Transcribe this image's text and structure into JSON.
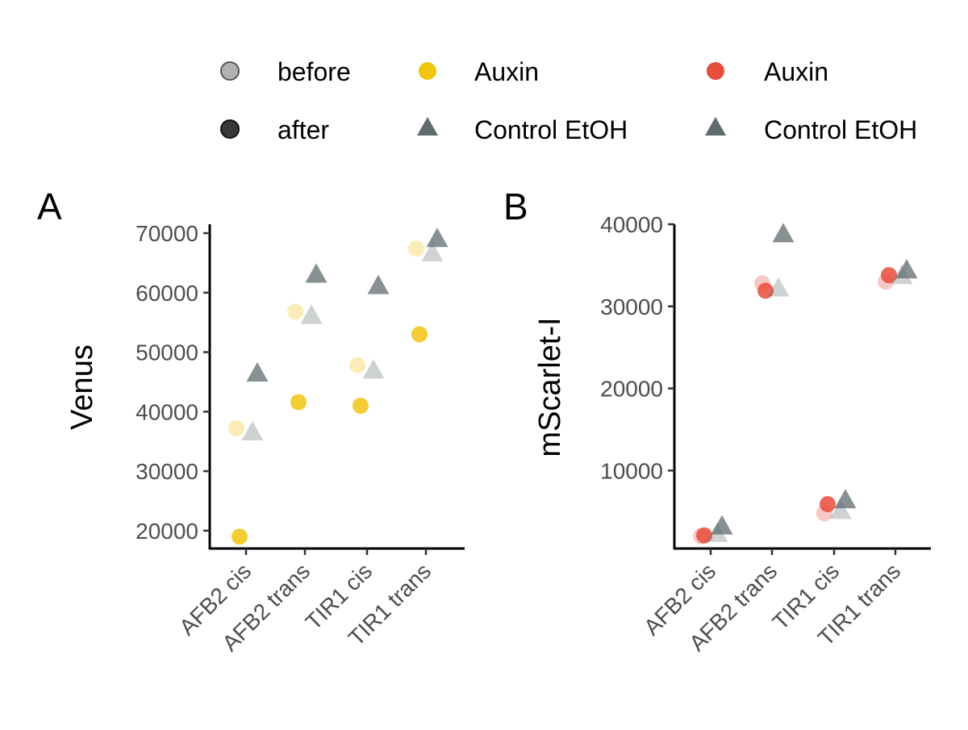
{
  "colors": {
    "auxin_venus": "#f1c40f",
    "auxin_mscarlet": "#e74c3c",
    "control": "#5f6b6d",
    "legend_point": "#555555"
  },
  "legend": {
    "timepoint": [
      {
        "label": "before",
        "shape": "circle",
        "alpha": 0.4
      },
      {
        "label": "after",
        "shape": "circle",
        "alpha": 1.0
      }
    ],
    "venus_treatment": [
      {
        "label": "Auxin",
        "shape": "circle",
        "color": "#f1c40f"
      },
      {
        "label": "Control EtOH",
        "shape": "triangle",
        "color": "#5f6b6d"
      }
    ],
    "mscarlet_treatment": [
      {
        "label": "Auxin",
        "shape": "circle",
        "color": "#e74c3c"
      },
      {
        "label": "Control EtOH",
        "shape": "triangle",
        "color": "#5f6b6d"
      }
    ]
  },
  "chart_data": [
    {
      "panel": "A",
      "type": "scatter",
      "ylabel": "Venus",
      "xlabel": "",
      "categories": [
        "AFB2 cis",
        "AFB2 trans",
        "TIR1 cis",
        "TIR1 trans"
      ],
      "ylim": [
        17000,
        71500
      ],
      "yticks": [
        20000,
        30000,
        40000,
        50000,
        60000,
        70000
      ],
      "tick_labels": [
        "20000",
        "30000",
        "40000",
        "50000",
        "60000",
        "70000"
      ],
      "series": [
        {
          "name": "Auxin",
          "timepoint": "before",
          "shape": "circle",
          "color": "#f1c40f",
          "alpha": 0.3,
          "values": [
            37200,
            56800,
            47800,
            67400
          ]
        },
        {
          "name": "Auxin",
          "timepoint": "after",
          "shape": "circle",
          "color": "#f1c40f",
          "alpha": 0.85,
          "values": [
            19000,
            41600,
            41000,
            53000
          ]
        },
        {
          "name": "Control EtOH",
          "timepoint": "before",
          "shape": "triangle",
          "color": "#5f6b6d",
          "alpha": 0.3,
          "values": [
            36400,
            56000,
            46800,
            66500
          ]
        },
        {
          "name": "Control EtOH",
          "timepoint": "after",
          "shape": "triangle",
          "color": "#5f6b6d",
          "alpha": 0.75,
          "values": [
            46300,
            62900,
            61000,
            68900
          ]
        }
      ]
    },
    {
      "panel": "B",
      "type": "scatter",
      "ylabel": "mScarlet-I",
      "xlabel": "",
      "categories": [
        "AFB2 cis",
        "AFB2 trans",
        "TIR1 cis",
        "TIR1 trans"
      ],
      "ylim": [
        500,
        40000
      ],
      "yticks": [
        10000,
        20000,
        30000,
        40000
      ],
      "tick_labels": [
        "10000",
        "20000",
        "30000",
        "40000"
      ],
      "series": [
        {
          "name": "Auxin",
          "timepoint": "before",
          "shape": "circle",
          "color": "#e74c3c",
          "alpha": 0.3,
          "values": [
            2000,
            32800,
            4800,
            33000
          ]
        },
        {
          "name": "Auxin",
          "timepoint": "after",
          "shape": "circle",
          "color": "#e74c3c",
          "alpha": 0.85,
          "values": [
            2100,
            31900,
            5900,
            33800
          ]
        },
        {
          "name": "Control EtOH",
          "timepoint": "before",
          "shape": "triangle",
          "color": "#5f6b6d",
          "alpha": 0.3,
          "values": [
            2200,
            32100,
            5000,
            33600
          ]
        },
        {
          "name": "Control EtOH",
          "timepoint": "after",
          "shape": "triangle",
          "color": "#5f6b6d",
          "alpha": 0.75,
          "values": [
            3100,
            38700,
            6300,
            34300
          ]
        }
      ]
    }
  ]
}
